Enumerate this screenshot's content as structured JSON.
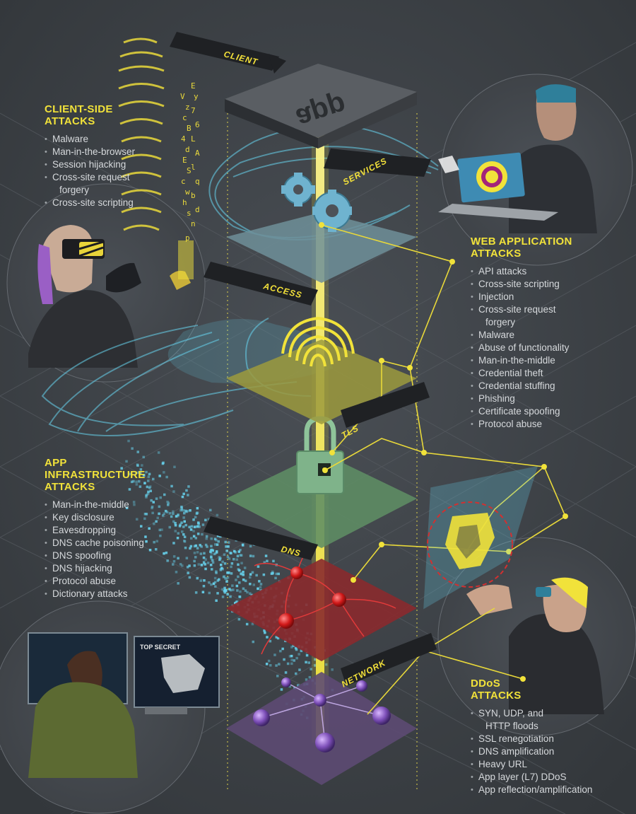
{
  "layers": [
    {
      "key": "client",
      "label": "CLIENT"
    },
    {
      "key": "services",
      "label": "SERVICES"
    },
    {
      "key": "access",
      "label": "ACCESS"
    },
    {
      "key": "tls",
      "label": "TLS"
    },
    {
      "key": "dns",
      "label": "DNS"
    },
    {
      "key": "network",
      "label": "NETWORK"
    }
  ],
  "app_label": "app",
  "monitor_label": "TOP SECRET",
  "panels": {
    "client_side": {
      "title_line1": "CLIENT-SIDE",
      "title_line2": "ATTACKS",
      "items": [
        "Malware",
        "Man-in-the-browser",
        "Session hijacking",
        "Cross-site request",
        "forgery",
        "Cross-site scripting"
      ]
    },
    "web_app": {
      "title_line1": "WEB APPLICATION",
      "title_line2": "ATTACKS",
      "items": [
        "API attacks",
        "Cross-site scripting",
        "Injection",
        "Cross-site request",
        "forgery",
        "Malware",
        "Abuse of functionality",
        "Man-in-the-middle",
        "Credential theft",
        "Credential stuffing",
        "Phishing",
        "Certificate spoofing",
        "Protocol abuse"
      ]
    },
    "infra": {
      "title_line1": "APP",
      "title_line2": "INFRASTRUCTURE",
      "title_line3": "ATTACKS",
      "items": [
        "Man-in-the-middle",
        "Key disclosure",
        "Eavesdropping",
        "DNS cache poisoning",
        "DNS spoofing",
        "DNS hijacking",
        "Protocol abuse",
        "Dictionary attacks"
      ]
    },
    "ddos": {
      "title_line1": "DDoS",
      "title_line2": "ATTACKS",
      "items": [
        "SYN, UDP, and",
        "HTTP floods",
        "SSL renegotiation",
        "DNS amplification",
        "Heavy URL",
        "App layer (L7) DDoS",
        "App reflection/amplification"
      ]
    }
  },
  "colors": {
    "background": "#3d4146",
    "accent_yellow": "#f1e23a",
    "beam_yellow": "#f5ec2a",
    "services_plate": "#6f8f99",
    "access_plate": "#9c9a3d",
    "tls_plate": "#5f8d64",
    "dns_plate": "#8a2a2e",
    "network_plate": "#5d4a73",
    "cyan_glow": "#67d3ee"
  }
}
